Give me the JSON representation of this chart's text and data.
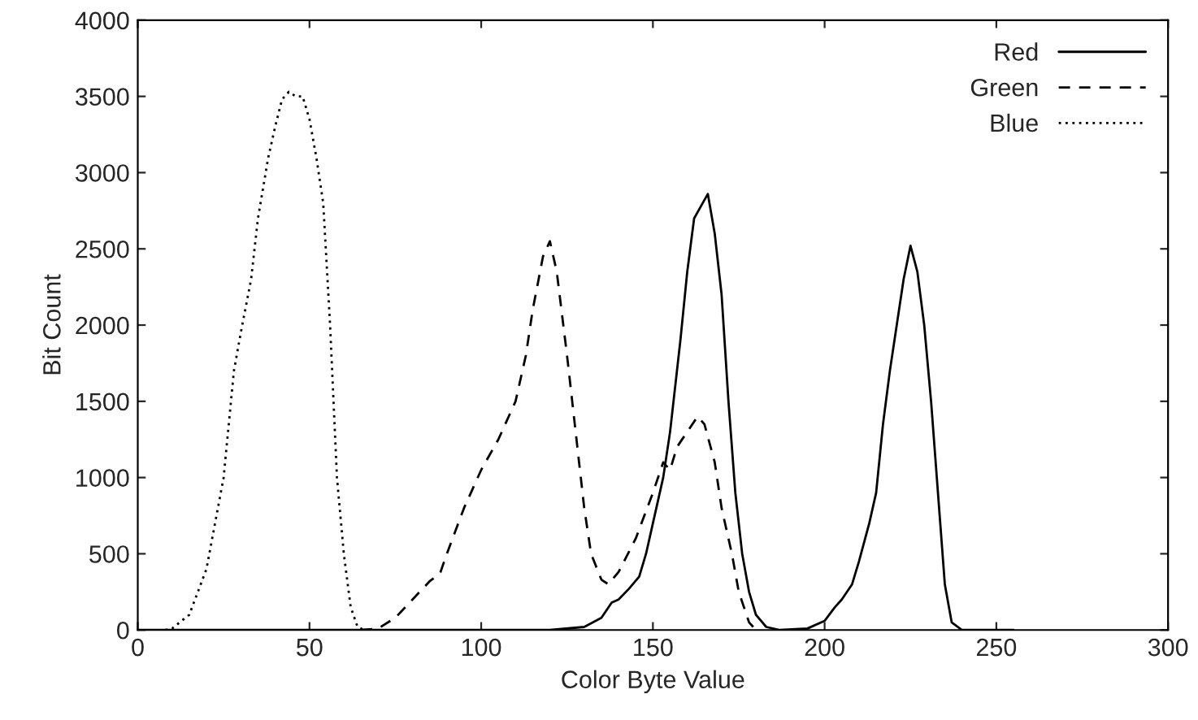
{
  "chart_data": {
    "type": "line",
    "xlabel": "Color Byte Value",
    "ylabel": "Bit Count",
    "xlim": [
      0,
      300
    ],
    "ylim": [
      0,
      4000
    ],
    "xticks": [
      0,
      50,
      100,
      150,
      200,
      250,
      300
    ],
    "yticks": [
      0,
      500,
      1000,
      1500,
      2000,
      2500,
      3000,
      3500,
      4000
    ],
    "grid": false,
    "legend": "top right",
    "series": [
      {
        "name": "Red",
        "color": "#000000",
        "line_style": "solid",
        "x": [
          0,
          120,
          130,
          135,
          138,
          140,
          143,
          146,
          148,
          150,
          153,
          155,
          157,
          158,
          160,
          162,
          164,
          166,
          168,
          170,
          172,
          174,
          176,
          178,
          180,
          183,
          187,
          195,
          200,
          203,
          205,
          208,
          210,
          213,
          215,
          217,
          219,
          221,
          223,
          225,
          227,
          229,
          231,
          233,
          235,
          237,
          240,
          255
        ],
        "values": [
          0,
          0,
          20,
          80,
          180,
          200,
          270,
          350,
          500,
          700,
          1000,
          1300,
          1700,
          1900,
          2350,
          2700,
          2780,
          2860,
          2600,
          2200,
          1500,
          900,
          500,
          250,
          100,
          20,
          0,
          10,
          60,
          150,
          200,
          300,
          450,
          700,
          900,
          1350,
          1700,
          2000,
          2300,
          2520,
          2350,
          2000,
          1500,
          900,
          300,
          50,
          0,
          0
        ]
      },
      {
        "name": "Green",
        "color": "#000000",
        "line_style": "dashed",
        "x": [
          65,
          70,
          75,
          80,
          85,
          88,
          90,
          95,
          100,
          105,
          110,
          113,
          115,
          118,
          120,
          122,
          125,
          128,
          130,
          132,
          135,
          137,
          140,
          145,
          150,
          153,
          155,
          157,
          160,
          163,
          165,
          168,
          170,
          173,
          175,
          178,
          180
        ],
        "values": [
          0,
          10,
          80,
          200,
          320,
          370,
          500,
          800,
          1050,
          1250,
          1500,
          1800,
          2100,
          2450,
          2550,
          2350,
          1800,
          1200,
          800,
          500,
          330,
          300,
          380,
          600,
          900,
          1100,
          1050,
          1200,
          1300,
          1400,
          1350,
          1100,
          800,
          500,
          250,
          50,
          0
        ]
      },
      {
        "name": "Blue",
        "color": "#000000",
        "line_style": "dotted",
        "x": [
          8,
          10,
          15,
          20,
          25,
          28,
          30,
          33,
          35,
          38,
          40,
          42,
          44,
          46,
          48,
          50,
          52,
          54,
          55,
          56,
          57,
          58,
          60,
          62,
          64,
          66
        ],
        "values": [
          0,
          10,
          100,
          400,
          1000,
          1700,
          1950,
          2300,
          2700,
          3100,
          3300,
          3480,
          3530,
          3500,
          3500,
          3350,
          3100,
          2800,
          2400,
          2000,
          1500,
          1000,
          500,
          150,
          20,
          0
        ]
      }
    ]
  }
}
